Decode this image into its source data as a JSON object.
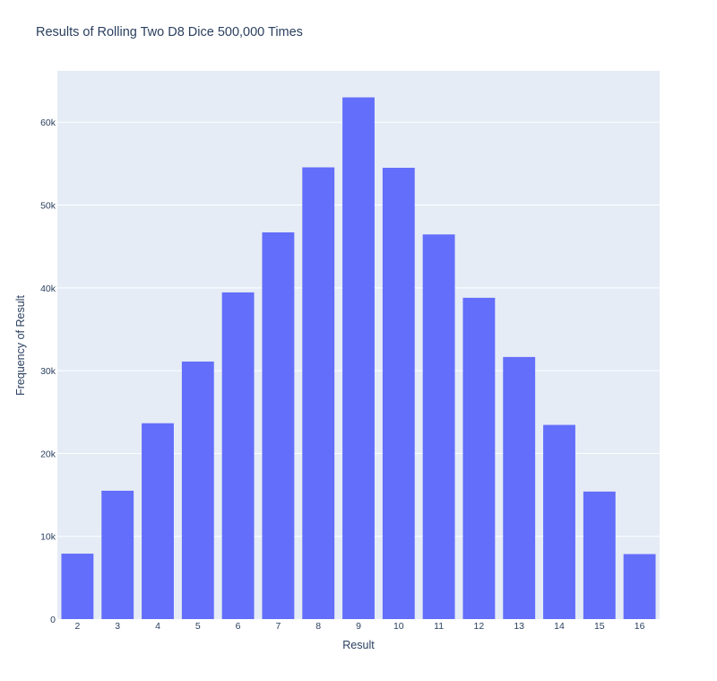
{
  "chart_data": {
    "type": "bar",
    "title": "Results of Rolling Two D8 Dice 500,000 Times",
    "xlabel": "Result",
    "ylabel": "Frequency of Result",
    "categories": [
      "2",
      "3",
      "4",
      "5",
      "6",
      "7",
      "8",
      "9",
      "10",
      "11",
      "12",
      "13",
      "14",
      "15",
      "16"
    ],
    "values": [
      7900,
      15500,
      23650,
      31100,
      39450,
      46700,
      54550,
      63000,
      54500,
      46450,
      38800,
      31650,
      23450,
      15400,
      7850
    ],
    "ylim": [
      0,
      66200
    ],
    "yticks": [
      0,
      10000,
      20000,
      30000,
      40000,
      50000,
      60000
    ],
    "ytick_labels": [
      "0",
      "10k",
      "20k",
      "30k",
      "40k",
      "50k",
      "60k"
    ],
    "grid": true,
    "legend": "none",
    "colors": {
      "bar": "#636efa",
      "plot_background": "#e5ecf6",
      "grid": "#ffffff",
      "text": "#2a3f5f",
      "tick_text": "#2a3f5f"
    }
  }
}
